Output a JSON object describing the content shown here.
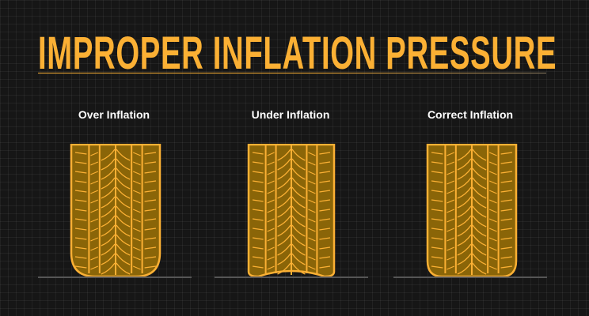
{
  "title": "IMPROPER INFLATION PRESSURE",
  "colors": {
    "accent": "#fbb034",
    "tire_fill": "#8a6508",
    "background": "#161616"
  },
  "panels": [
    {
      "label": "Over Inflation",
      "shape": "over"
    },
    {
      "label": "Under Inflation",
      "shape": "under"
    },
    {
      "label": "Correct Inflation",
      "shape": "correct"
    }
  ]
}
